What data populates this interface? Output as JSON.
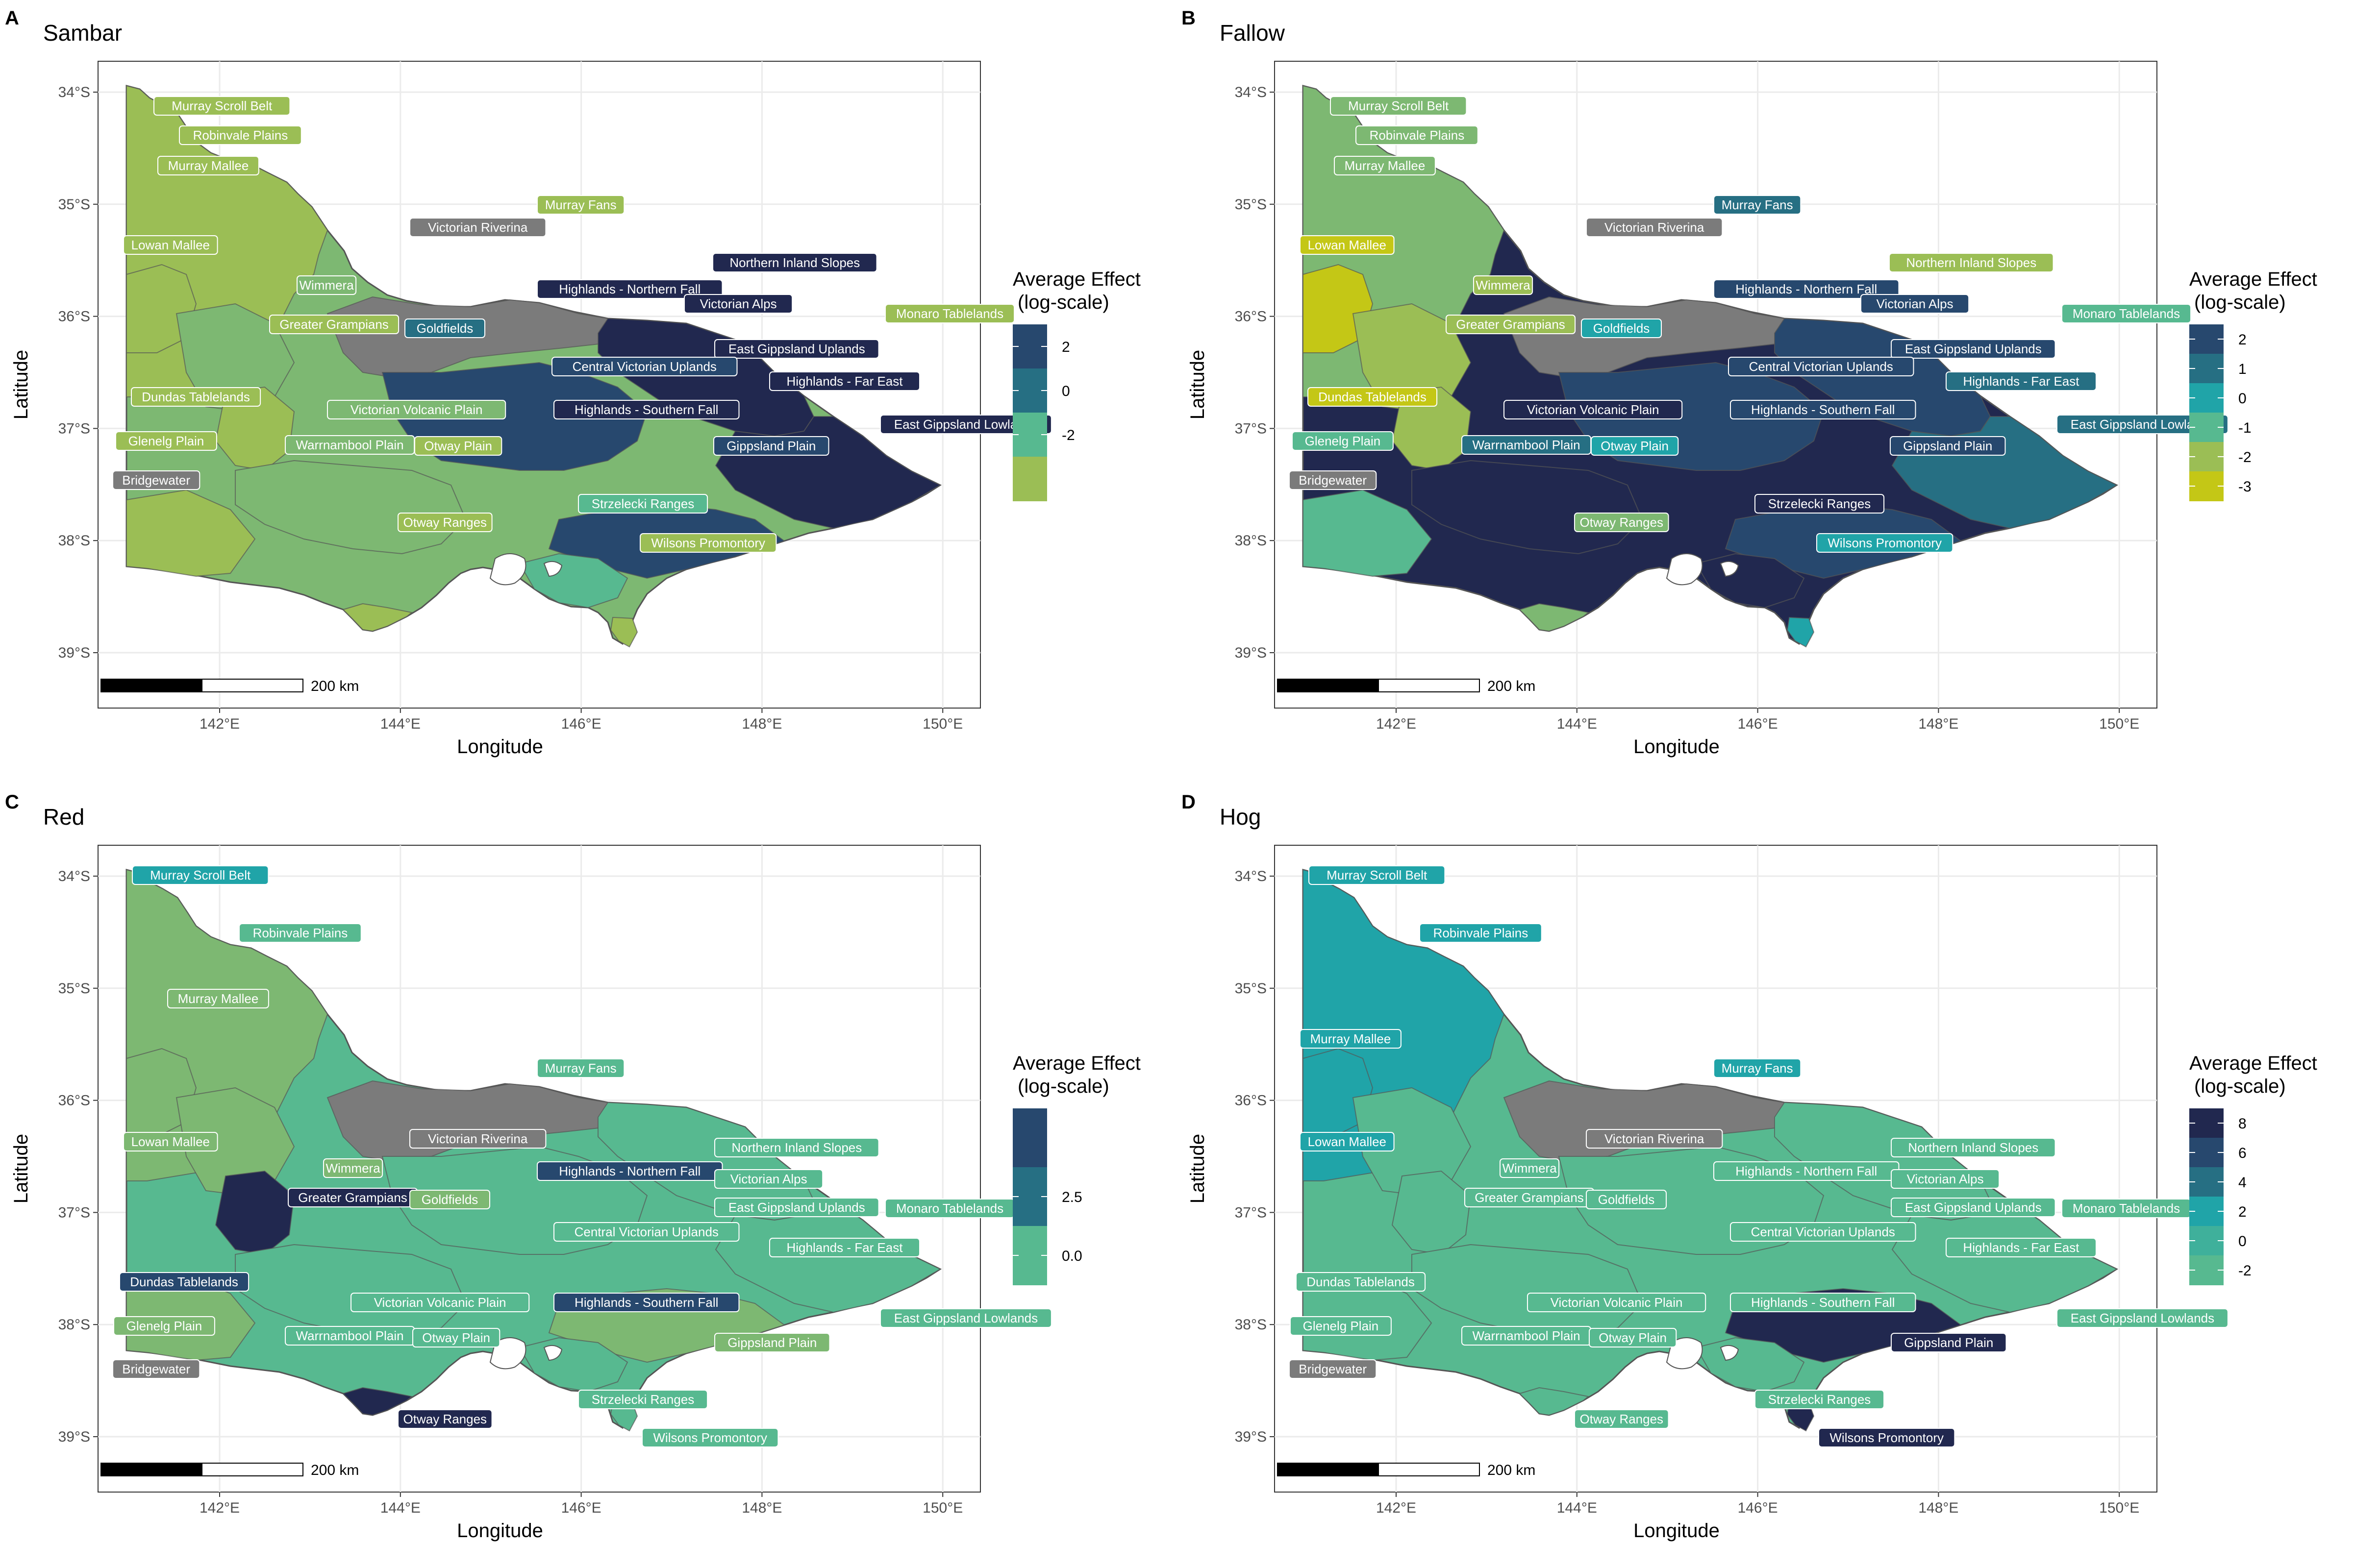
{
  "axes": {
    "xlabel": "Longitude",
    "ylabel": "Latitude",
    "x_ticks": [
      "142°E",
      "144°E",
      "146°E",
      "148°E",
      "150°E"
    ],
    "y_ticks": [
      "34°S",
      "35°S",
      "36°S",
      "37°S",
      "38°S",
      "39°S"
    ]
  },
  "scale_bar_label": "200 km",
  "legend_title_line1": "Average Effect",
  "legend_title_line2": "(log-scale)",
  "colors": {
    "c1": "#21284f",
    "c2": "#27486e",
    "c3": "#266f83",
    "c4": "#20a4a8",
    "c5": "#57b990",
    "c6": "#7db872",
    "c7": "#9bbe55",
    "c8": "#c4c716",
    "na": "#7b7b7b",
    "outline": "#555555"
  },
  "panels": [
    {
      "letter": "A",
      "title": "Sambar",
      "legend_items": [
        {
          "label": "2",
          "color": "#27486e"
        },
        {
          "label": "0",
          "color": "#266f83"
        },
        {
          "label": "-2",
          "color": "#57b990"
        },
        {
          "label": "",
          "color": "#9bbe55"
        }
      ],
      "regions": [
        {
          "name": "Murray Scroll Belt",
          "value": "c7"
        },
        {
          "name": "Robinvale Plains",
          "value": "c7"
        },
        {
          "name": "Murray Mallee",
          "value": "c7"
        },
        {
          "name": "Murray Fans",
          "value": "c7"
        },
        {
          "name": "Victorian Riverina",
          "value": "na"
        },
        {
          "name": "Lowan Mallee",
          "value": "c7"
        },
        {
          "name": "Northern Inland Slopes",
          "value": "c1"
        },
        {
          "name": "Wimmera",
          "value": "c6"
        },
        {
          "name": "Highlands - Northern Fall",
          "value": "c1"
        },
        {
          "name": "Victorian Alps",
          "value": "c1"
        },
        {
          "name": "Monaro Tablelands",
          "value": "c7"
        },
        {
          "name": "Greater Grampians",
          "value": "c7"
        },
        {
          "name": "Goldfields",
          "value": "c3"
        },
        {
          "name": "East Gippsland Uplands",
          "value": "c1"
        },
        {
          "name": "Central Victorian Uplands",
          "value": "c2"
        },
        {
          "name": "Highlands - Far East",
          "value": "c1"
        },
        {
          "name": "Dundas Tablelands",
          "value": "c7"
        },
        {
          "name": "Victorian Volcanic Plain",
          "value": "c6"
        },
        {
          "name": "Highlands - Southern Fall",
          "value": "c1"
        },
        {
          "name": "East Gippsland Lowlands",
          "value": "c1"
        },
        {
          "name": "Glenelg Plain",
          "value": "c7"
        },
        {
          "name": "Warrnambool Plain",
          "value": "c6"
        },
        {
          "name": "Otway Plain",
          "value": "c7"
        },
        {
          "name": "Gippsland Plain",
          "value": "c2"
        },
        {
          "name": "Bridgewater",
          "value": "na"
        },
        {
          "name": "Strzelecki Ranges",
          "value": "c5"
        },
        {
          "name": "Otway Ranges",
          "value": "c7"
        },
        {
          "name": "Wilsons Promontory",
          "value": "c7"
        }
      ]
    },
    {
      "letter": "B",
      "title": "Fallow",
      "legend_items": [
        {
          "label": "2",
          "color": "#27486e"
        },
        {
          "label": "1",
          "color": "#266f83"
        },
        {
          "label": "0",
          "color": "#20a4a8"
        },
        {
          "label": "-1",
          "color": "#57b990"
        },
        {
          "label": "-2",
          "color": "#9bbe55"
        },
        {
          "label": "-3",
          "color": "#c4c716"
        }
      ],
      "regions": [
        {
          "name": "Murray Scroll Belt",
          "value": "c6"
        },
        {
          "name": "Robinvale Plains",
          "value": "c6"
        },
        {
          "name": "Murray Mallee",
          "value": "c6"
        },
        {
          "name": "Murray Fans",
          "value": "c3"
        },
        {
          "name": "Victorian Riverina",
          "value": "na"
        },
        {
          "name": "Lowan Mallee",
          "value": "c8"
        },
        {
          "name": "Northern Inland Slopes",
          "value": "c7"
        },
        {
          "name": "Wimmera",
          "value": "c7"
        },
        {
          "name": "Highlands - Northern Fall",
          "value": "c2"
        },
        {
          "name": "Victorian Alps",
          "value": "c2"
        },
        {
          "name": "Monaro Tablelands",
          "value": "c5"
        },
        {
          "name": "Greater Grampians",
          "value": "c7"
        },
        {
          "name": "Goldfields",
          "value": "c4"
        },
        {
          "name": "East Gippsland Uplands",
          "value": "c2"
        },
        {
          "name": "Central Victorian Uplands",
          "value": "c2"
        },
        {
          "name": "Highlands - Far East",
          "value": "c3"
        },
        {
          "name": "Dundas Tablelands",
          "value": "c8"
        },
        {
          "name": "Victorian Volcanic Plain",
          "value": "c1"
        },
        {
          "name": "Highlands - Southern Fall",
          "value": "c2"
        },
        {
          "name": "East Gippsland Lowlands",
          "value": "c3"
        },
        {
          "name": "Glenelg Plain",
          "value": "c5"
        },
        {
          "name": "Warrnambool Plain",
          "value": "c3"
        },
        {
          "name": "Otway Plain",
          "value": "c4"
        },
        {
          "name": "Gippsland Plain",
          "value": "c2"
        },
        {
          "name": "Bridgewater",
          "value": "na"
        },
        {
          "name": "Strzelecki Ranges",
          "value": "c1"
        },
        {
          "name": "Otway Ranges",
          "value": "c6"
        },
        {
          "name": "Wilsons Promontory",
          "value": "c4"
        }
      ]
    },
    {
      "letter": "C",
      "title": "Red",
      "legend_items": [
        {
          "label": "",
          "color": "#27486e"
        },
        {
          "label": "2.5",
          "color": "#266f83"
        },
        {
          "label": "0.0",
          "color": "#57b990"
        }
      ],
      "regions": [
        {
          "name": "Murray Scroll Belt",
          "value": "c4"
        },
        {
          "name": "Robinvale Plains",
          "value": "c5"
        },
        {
          "name": "Murray Mallee",
          "value": "c6"
        },
        {
          "name": "Murray Fans",
          "value": "c5"
        },
        {
          "name": "Victorian Riverina",
          "value": "na"
        },
        {
          "name": "Lowan Mallee",
          "value": "c6"
        },
        {
          "name": "Northern Inland Slopes",
          "value": "c5"
        },
        {
          "name": "Wimmera",
          "value": "c6"
        },
        {
          "name": "Highlands - Northern Fall",
          "value": "c2"
        },
        {
          "name": "Victorian Alps",
          "value": "c5"
        },
        {
          "name": "Monaro Tablelands",
          "value": "c5"
        },
        {
          "name": "Greater Grampians",
          "value": "c1"
        },
        {
          "name": "Goldfields",
          "value": "c6"
        },
        {
          "name": "East Gippsland Uplands",
          "value": "c5"
        },
        {
          "name": "Central Victorian Uplands",
          "value": "c5"
        },
        {
          "name": "Highlands - Far East",
          "value": "c5"
        },
        {
          "name": "Dundas Tablelands",
          "value": "c2"
        },
        {
          "name": "Victorian Volcanic Plain",
          "value": "c5"
        },
        {
          "name": "Highlands - Southern Fall",
          "value": "c2"
        },
        {
          "name": "East Gippsland Lowlands",
          "value": "c5"
        },
        {
          "name": "Glenelg Plain",
          "value": "c6"
        },
        {
          "name": "Warrnambool Plain",
          "value": "c5"
        },
        {
          "name": "Otway Plain",
          "value": "c5"
        },
        {
          "name": "Gippsland Plain",
          "value": "c6"
        },
        {
          "name": "Bridgewater",
          "value": "na"
        },
        {
          "name": "Strzelecki Ranges",
          "value": "c5"
        },
        {
          "name": "Otway Ranges",
          "value": "c1"
        },
        {
          "name": "Wilsons Promontory",
          "value": "c5"
        }
      ]
    },
    {
      "letter": "D",
      "title": "Hog",
      "legend_items": [
        {
          "label": "8",
          "color": "#21284f"
        },
        {
          "label": "6",
          "color": "#27486e"
        },
        {
          "label": "4",
          "color": "#266f83"
        },
        {
          "label": "2",
          "color": "#20a4a8"
        },
        {
          "label": "0",
          "color": "#3fb09b"
        },
        {
          "label": "-2",
          "color": "#57b990"
        }
      ],
      "regions": [
        {
          "name": "Murray Scroll Belt",
          "value": "c4"
        },
        {
          "name": "Robinvale Plains",
          "value": "c4"
        },
        {
          "name": "Murray Mallee",
          "value": "c4"
        },
        {
          "name": "Murray Fans",
          "value": "c4"
        },
        {
          "name": "Victorian Riverina",
          "value": "na"
        },
        {
          "name": "Lowan Mallee",
          "value": "c4"
        },
        {
          "name": "Northern Inland Slopes",
          "value": "c5"
        },
        {
          "name": "Wimmera",
          "value": "c5"
        },
        {
          "name": "Highlands - Northern Fall",
          "value": "c5"
        },
        {
          "name": "Victorian Alps",
          "value": "c5"
        },
        {
          "name": "Monaro Tablelands",
          "value": "c5"
        },
        {
          "name": "Greater Grampians",
          "value": "c5"
        },
        {
          "name": "Goldfields",
          "value": "c5"
        },
        {
          "name": "East Gippsland Uplands",
          "value": "c5"
        },
        {
          "name": "Central Victorian Uplands",
          "value": "c5"
        },
        {
          "name": "Highlands - Far East",
          "value": "c5"
        },
        {
          "name": "Dundas Tablelands",
          "value": "c5"
        },
        {
          "name": "Victorian Volcanic Plain",
          "value": "c5"
        },
        {
          "name": "Highlands - Southern Fall",
          "value": "c5"
        },
        {
          "name": "East Gippsland Lowlands",
          "value": "c5"
        },
        {
          "name": "Glenelg Plain",
          "value": "c5"
        },
        {
          "name": "Warrnambool Plain",
          "value": "c5"
        },
        {
          "name": "Otway Plain",
          "value": "c5"
        },
        {
          "name": "Gippsland Plain",
          "value": "c1"
        },
        {
          "name": "Bridgewater",
          "value": "na"
        },
        {
          "name": "Strzelecki Ranges",
          "value": "c5"
        },
        {
          "name": "Otway Ranges",
          "value": "c5"
        },
        {
          "name": "Wilsons Promontory",
          "value": "c1"
        }
      ]
    }
  ]
}
